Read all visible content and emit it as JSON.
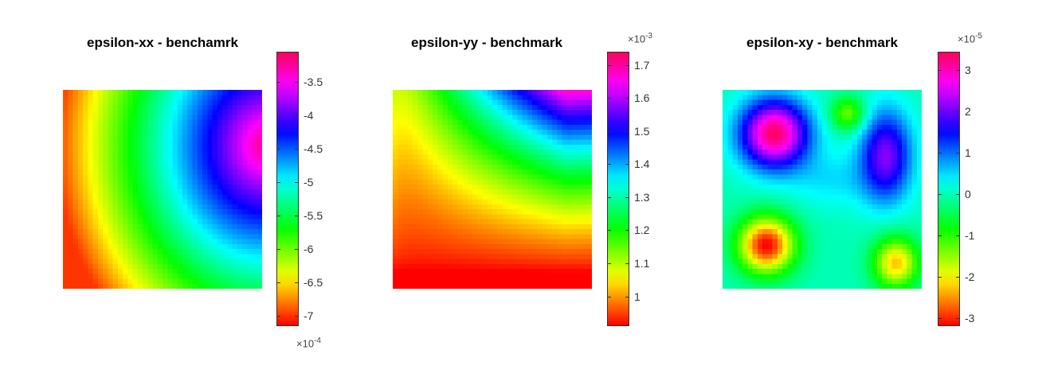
{
  "chart_data": [
    {
      "type": "heatmap",
      "title": "epsilon-xx - benchamrk",
      "colormap": "hsv",
      "clim": [
        -7.15,
        -3.05
      ],
      "multiplier": "×10",
      "multiplier_exp": "-4",
      "ticks": [
        -7,
        -6.5,
        -6,
        -5.5,
        -5,
        -4.5,
        -4,
        -3.5
      ],
      "tick_labels": [
        "-7",
        "-6.5",
        "-6",
        "-5.5",
        "-5",
        "-4.5",
        "-4",
        "-3.5"
      ],
      "grid_size": 40,
      "field": "xx"
    },
    {
      "type": "heatmap",
      "title": "epsilon-yy - benchmark",
      "colormap": "hsv",
      "clim": [
        0.91,
        1.74
      ],
      "multiplier": "×10",
      "multiplier_exp": "-3",
      "ticks": [
        1,
        1.1,
        1.2,
        1.3,
        1.4,
        1.5,
        1.6,
        1.7
      ],
      "tick_labels": [
        "1",
        "1.1",
        "1.2",
        "1.3",
        "1.4",
        "1.5",
        "1.6",
        "1.7"
      ],
      "grid_size": 40,
      "field": "yy"
    },
    {
      "type": "heatmap",
      "title": "epsilon-xy - benchmark",
      "colormap": "hsv",
      "clim": [
        -3.2,
        3.45
      ],
      "multiplier": "×10",
      "multiplier_exp": "-5",
      "ticks": [
        -3,
        -2,
        -1,
        0,
        1,
        2,
        3
      ],
      "tick_labels": [
        "-3",
        "-2",
        "-1",
        "0",
        "1",
        "2",
        "3"
      ],
      "grid_size": 40,
      "field": "xy"
    }
  ]
}
